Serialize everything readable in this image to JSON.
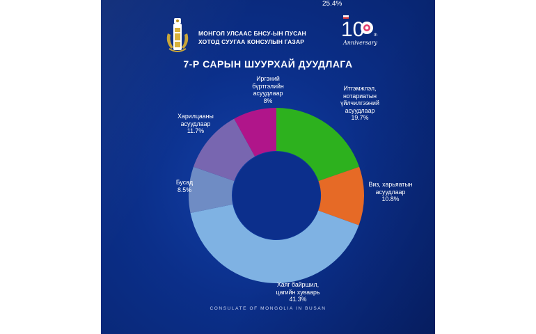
{
  "header": {
    "top_fragment": "25.4%",
    "consulate_line1": "МОНГОЛ УЛСААС БНСУ-ЫН ПУСАН",
    "consulate_line2": "ХОТОД СУУГАА КОНСУЛЫН ГАЗАР",
    "anniversary_number": "10",
    "anniversary_suffix": "th",
    "anniversary_script": "Anniversary"
  },
  "footer": {
    "text": "CONSULATE OF MONGOLIA IN BUSAN"
  },
  "colors": {
    "background": "#0b2f8a",
    "text": "#ffffff"
  },
  "chart_data": {
    "type": "pie",
    "variant": "donut",
    "title": "7-Р САРЫН ШУУРХАЙ ДУУДЛАГА",
    "slices": [
      {
        "label_lines": [
          "Итгэмжлэл,",
          "нотариатын",
          "үйлчилгээний",
          "асуудлаар"
        ],
        "value": 19.7,
        "value_label": "19.7%",
        "color": "#2db11e"
      },
      {
        "label_lines": [
          "Виз, харьяатын",
          "асуудлаар"
        ],
        "value": 10.8,
        "value_label": "10.8%",
        "color": "#e66a26"
      },
      {
        "label_lines": [
          "Хаяг байршил,",
          "цагийн хуваарь"
        ],
        "value": 41.3,
        "value_label": "41.3%",
        "color": "#7fb2e3"
      },
      {
        "label_lines": [
          "Бусад"
        ],
        "value": 8.5,
        "value_label": "8.5%",
        "color": "#6f8cc4"
      },
      {
        "label_lines": [
          "Харилцааны",
          "асуудлаар"
        ],
        "value": 11.7,
        "value_label": "11.7%",
        "color": "#7866b0"
      },
      {
        "label_lines": [
          "Иргэний",
          "бүртгэлийн",
          "асуудлаар"
        ],
        "value": 8.0,
        "value_label": "8%",
        "color": "#b0158a"
      }
    ],
    "start_angle_deg": 0,
    "direction": "clockwise",
    "legend": "none"
  }
}
